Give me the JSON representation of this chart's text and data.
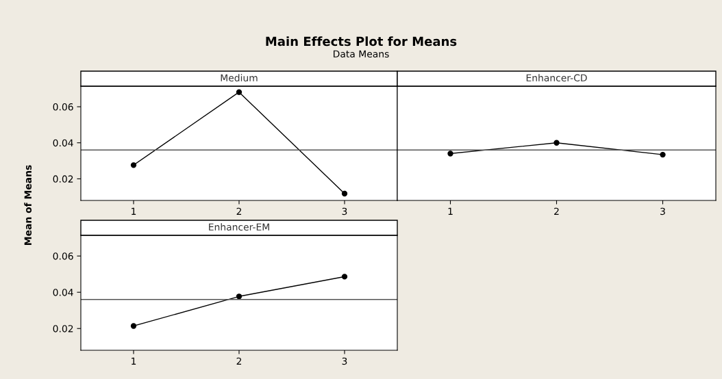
{
  "chart_data": [
    {
      "type": "line",
      "title": "Main Effects Plot for Means",
      "subtitle": "Data Means",
      "ylabel": "Mean of Means",
      "annotations": [
        "Medium"
      ],
      "categories": [
        "1",
        "2",
        "3"
      ],
      "series": [
        {
          "color": "#000000",
          "values": [
            0.0276,
            0.0681,
            0.0118
          ]
        }
      ],
      "ylim": [
        0.008,
        0.0714
      ],
      "yticks": [
        {
          "value": 0.02,
          "label": "0.02"
        },
        {
          "value": 0.04,
          "label": "0.04"
        },
        {
          "value": 0.06,
          "label": "0.06"
        }
      ],
      "ref_lines": [
        {
          "axis": "y",
          "value": 0.036
        }
      ],
      "marker": "circle",
      "line_style": "solid",
      "grid": false,
      "legend": false
    },
    {
      "type": "line",
      "annotations": [
        "Enhancer-CD"
      ],
      "categories": [
        "1",
        "2",
        "3"
      ],
      "series": [
        {
          "color": "#000000",
          "values": [
            0.034,
            0.04,
            0.0334
          ]
        }
      ],
      "ylim": [
        0.008,
        0.0714
      ],
      "tick_labels": "x",
      "ref_lines": [
        {
          "axis": "y",
          "value": 0.036
        }
      ],
      "marker": "circle",
      "line_style": "solid",
      "grid": false,
      "legend": false
    },
    {
      "type": "line",
      "annotations": [
        "Enhancer-EM"
      ],
      "categories": [
        "1",
        "2",
        "3"
      ],
      "series": [
        {
          "color": "#000000",
          "values": [
            0.0214,
            0.0377,
            0.0486
          ]
        }
      ],
      "ylim": [
        0.008,
        0.0714
      ],
      "yticks": [
        {
          "value": 0.02,
          "label": "0.02"
        },
        {
          "value": 0.04,
          "label": "0.04"
        },
        {
          "value": 0.06,
          "label": "0.06"
        }
      ],
      "ref_lines": [
        {
          "axis": "y",
          "value": 0.036
        }
      ],
      "marker": "circle",
      "line_style": "solid",
      "grid": false,
      "legend": false
    }
  ]
}
